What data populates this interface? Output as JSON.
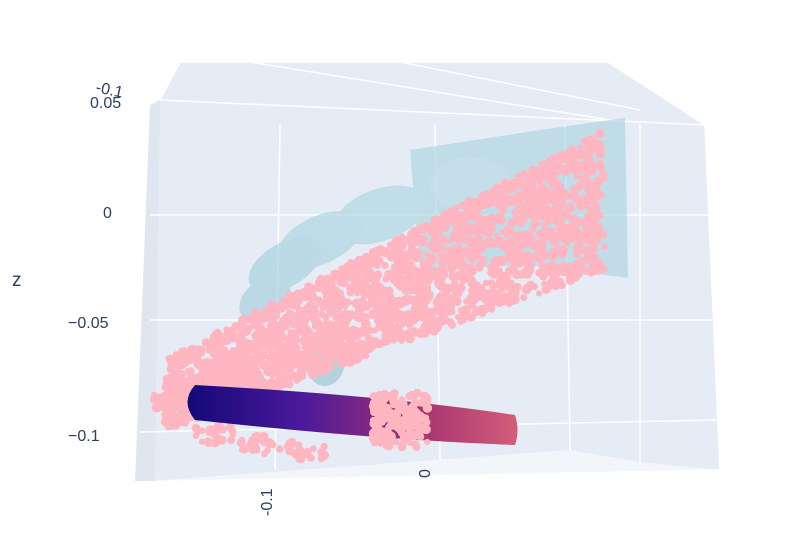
{
  "chart_data": {
    "type": "scatter3d",
    "title": "",
    "axes": {
      "x": {
        "label": "",
        "ticks": [
          "-0.1",
          "0"
        ]
      },
      "y": {
        "label": "",
        "ticks": [
          "-0.1"
        ]
      },
      "z": {
        "label": "z",
        "ticks": [
          "0.05",
          "0",
          "−0.05",
          "−0.1"
        ],
        "range": [
          -0.12,
          0.06
        ]
      }
    },
    "grid": true,
    "legend": "none",
    "series": [
      {
        "kind": "surface-points",
        "color": "#ffb6c1",
        "description_role": "pink point cloud"
      },
      {
        "kind": "mesh",
        "color": "#add8e6",
        "opacity": 0.6
      },
      {
        "kind": "surface-points",
        "colorscale": [
          "#1a0a8c",
          "#6a1fa0",
          "#b2396e",
          "#d9577a"
        ]
      }
    ],
    "colors": {
      "scene_bg": "#e5ecf6",
      "grid": "#ffffff",
      "pink": "#ffb6c1",
      "hand": "#add8e6"
    }
  }
}
